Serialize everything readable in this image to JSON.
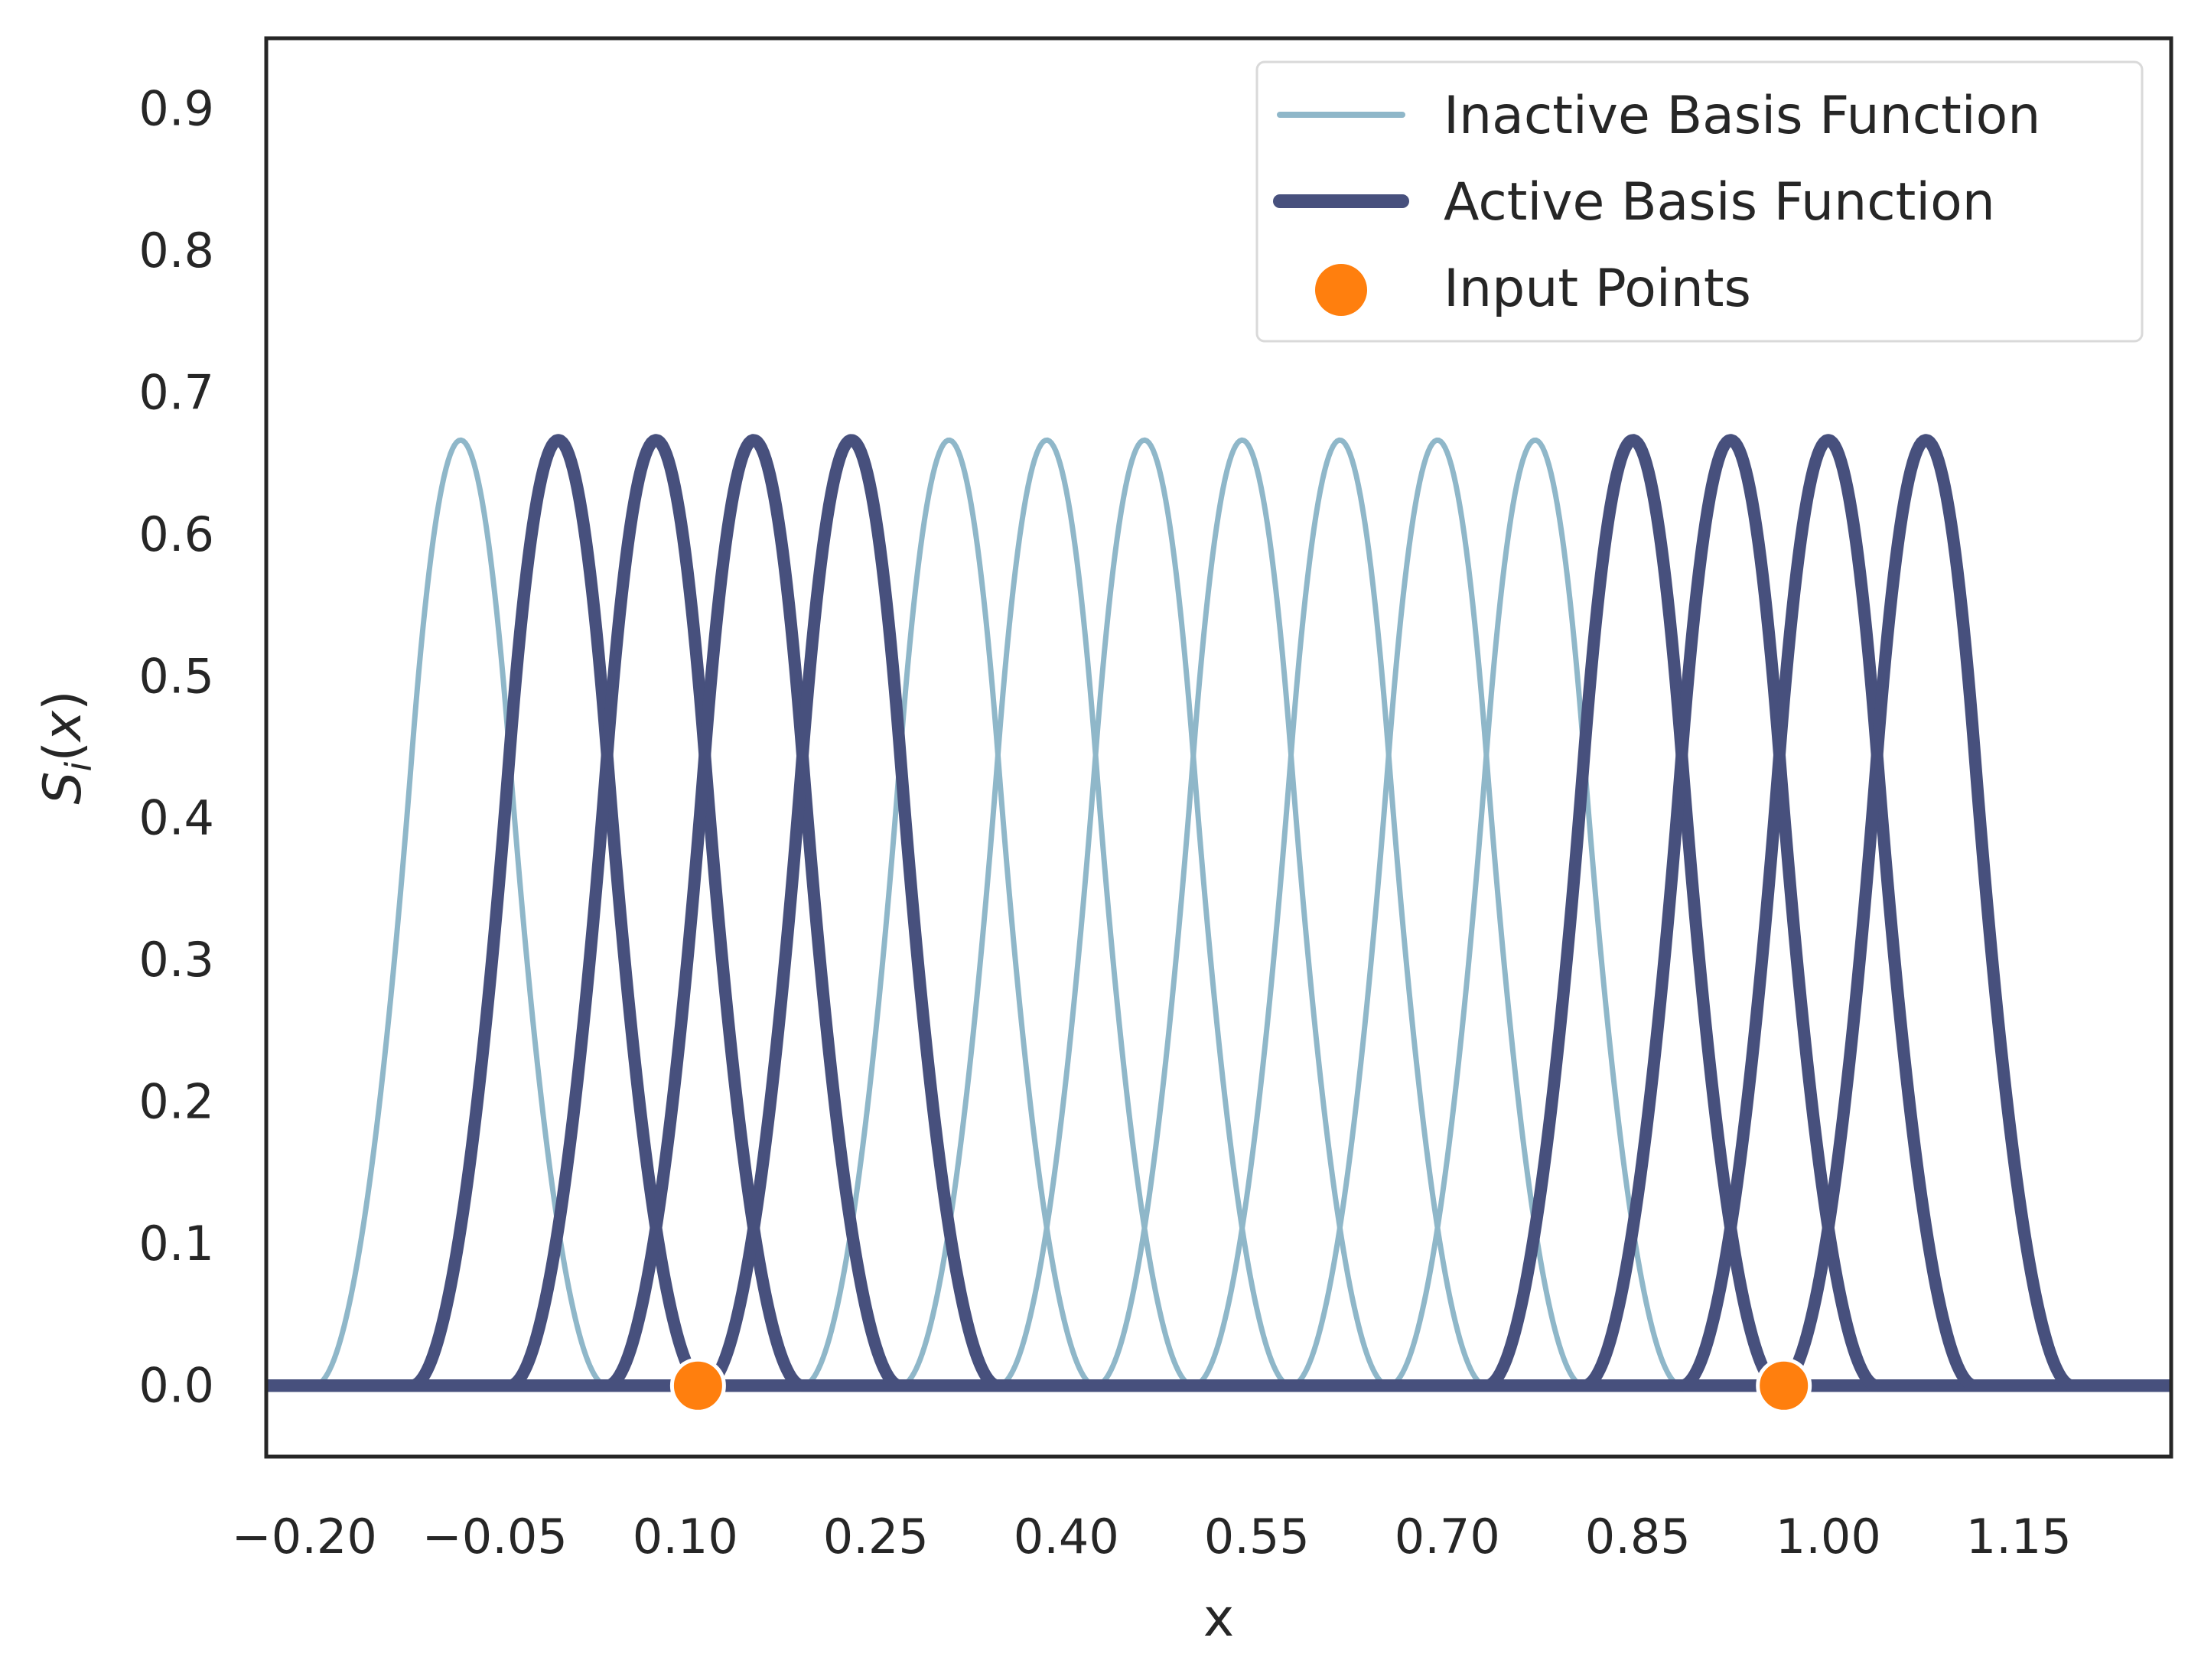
{
  "chart_data": {
    "type": "line",
    "xlabel": "x",
    "ylabel": "S_i(x)",
    "xlim": [
      -0.23,
      1.27
    ],
    "ylim": [
      -0.05,
      0.95
    ],
    "x_ticks": [
      "−0.20",
      "−0.05",
      "0.10",
      "0.25",
      "0.40",
      "0.55",
      "0.70",
      "0.85",
      "1.00",
      "1.15"
    ],
    "x_tick_values": [
      -0.2,
      -0.05,
      0.1,
      0.25,
      0.4,
      0.55,
      0.7,
      0.85,
      1.0,
      1.15
    ],
    "y_ticks": [
      "0.0",
      "0.1",
      "0.2",
      "0.3",
      "0.4",
      "0.5",
      "0.6",
      "0.7",
      "0.8",
      "0.9"
    ],
    "y_tick_values": [
      0.0,
      0.1,
      0.2,
      0.3,
      0.4,
      0.5,
      0.6,
      0.7,
      0.8,
      0.9
    ],
    "grid": false,
    "legend_position": "top-right",
    "legend": {
      "inactive": "Inactive Basis Function",
      "active": "Active Basis Function",
      "points": "Input Points"
    },
    "basis_peak": 0.6667,
    "basis_half_width": 0.1154,
    "basis_functions": [
      {
        "center": -0.0769,
        "active": false
      },
      {
        "center": 0.0,
        "active": true
      },
      {
        "center": 0.0769,
        "active": true
      },
      {
        "center": 0.1538,
        "active": true
      },
      {
        "center": 0.2308,
        "active": true
      },
      {
        "center": 0.3077,
        "active": false
      },
      {
        "center": 0.3846,
        "active": false
      },
      {
        "center": 0.4615,
        "active": false
      },
      {
        "center": 0.5385,
        "active": false
      },
      {
        "center": 0.6154,
        "active": false
      },
      {
        "center": 0.6923,
        "active": false
      },
      {
        "center": 0.7692,
        "active": false
      },
      {
        "center": 0.8462,
        "active": true
      },
      {
        "center": 0.9231,
        "active": true
      },
      {
        "center": 1.0,
        "active": true
      },
      {
        "center": 1.0769,
        "active": true
      }
    ],
    "series": [
      {
        "name": "Input Points",
        "x": [
          0.11,
          0.965
        ],
        "y": [
          0.0,
          0.0
        ]
      }
    ],
    "colors": {
      "inactive": "#8fb7c9",
      "active": "#47507d",
      "points": "#ff7f0e",
      "axes": "#262626"
    }
  }
}
